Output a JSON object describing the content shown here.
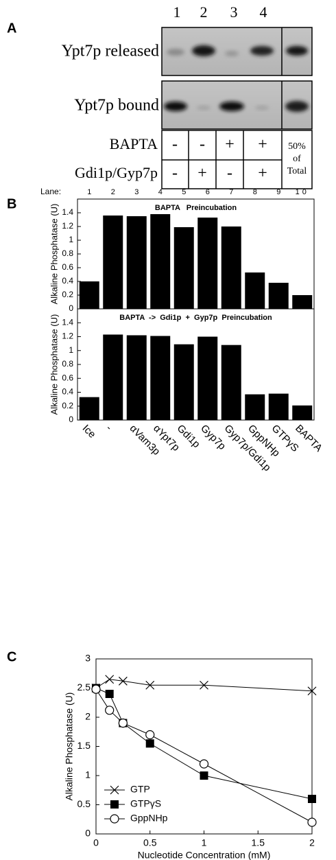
{
  "panel_a": {
    "label": "A",
    "lanes": [
      "1",
      "2",
      "3",
      "4"
    ],
    "rows": [
      "Ypt7p released",
      "Ypt7p bound"
    ],
    "table": [
      {
        "label": "BAPTA",
        "cells": [
          "-",
          "-",
          "+",
          "+"
        ]
      },
      {
        "label": "Gdi1p/Gyp7p",
        "cells": [
          "-",
          "+",
          "-",
          "+"
        ]
      }
    ],
    "total": [
      "50%",
      "of",
      "Total"
    ]
  },
  "panel_b_label": "B",
  "panel_c_label": "C",
  "chart_data": [
    {
      "type": "bar",
      "annotation": "BAPTA   Preincubation",
      "y_label": "Alkaline Phosphatase (U)",
      "lane_label": "Lane:",
      "lanes": [
        "1",
        "2",
        "3",
        "4",
        "5",
        "6",
        "7",
        "8",
        "9",
        "10"
      ],
      "values": [
        0.4,
        1.36,
        1.35,
        1.38,
        1.19,
        1.33,
        1.2,
        0.53,
        0.38,
        0.2
      ],
      "color": "#000000",
      "ylim": [
        0,
        1.6
      ],
      "yticks": [
        0,
        0.2,
        0.4,
        0.6,
        0.8,
        1,
        1.2,
        1.4
      ]
    },
    {
      "type": "bar",
      "annotation": "BAPTA  ->  Gdi1p  +  Gyp7p  Preincubation",
      "y_label": "Alkaline Phosphatase (U)",
      "categories": [
        "Ice",
        "-",
        "αVam3p",
        "αYpt7p",
        "Gdi1p",
        "Gyp7p",
        "Gyp7p/Gdi1p",
        "GppNHp",
        "GTPγS",
        "BAPTA"
      ],
      "values": [
        0.33,
        1.23,
        1.22,
        1.21,
        1.09,
        1.2,
        1.08,
        0.37,
        0.38,
        0.21
      ],
      "color": "#000000",
      "ylim": [
        0,
        1.6
      ],
      "yticks": [
        0,
        0.2,
        0.4,
        0.6,
        0.8,
        1,
        1.2,
        1.4
      ]
    },
    {
      "type": "line",
      "x_label": "Nucleotide Concentration (mM)",
      "y_label": "Alkaline Phosphatase (U)",
      "x": [
        0,
        0.125,
        0.25,
        0.5,
        1,
        2
      ],
      "series": [
        {
          "name": "GTP",
          "marker": "x",
          "color": "#000000",
          "values": [
            2.5,
            2.65,
            2.62,
            2.55,
            2.55,
            2.45
          ]
        },
        {
          "name": "GTPγS",
          "marker": "square",
          "color": "#000000",
          "values": [
            2.5,
            2.4,
            1.9,
            1.55,
            1.0,
            0.6
          ]
        },
        {
          "name": "GppNHp",
          "marker": "circle",
          "color": "#000000",
          "values": [
            2.48,
            2.12,
            1.9,
            1.7,
            1.2,
            0.2
          ]
        }
      ],
      "xlim": [
        0,
        2
      ],
      "ylim": [
        0,
        3
      ],
      "xticks": [
        0,
        0.5,
        1,
        1.5,
        2
      ],
      "yticks": [
        0,
        0.5,
        1,
        1.5,
        2,
        2.5,
        3
      ]
    }
  ]
}
